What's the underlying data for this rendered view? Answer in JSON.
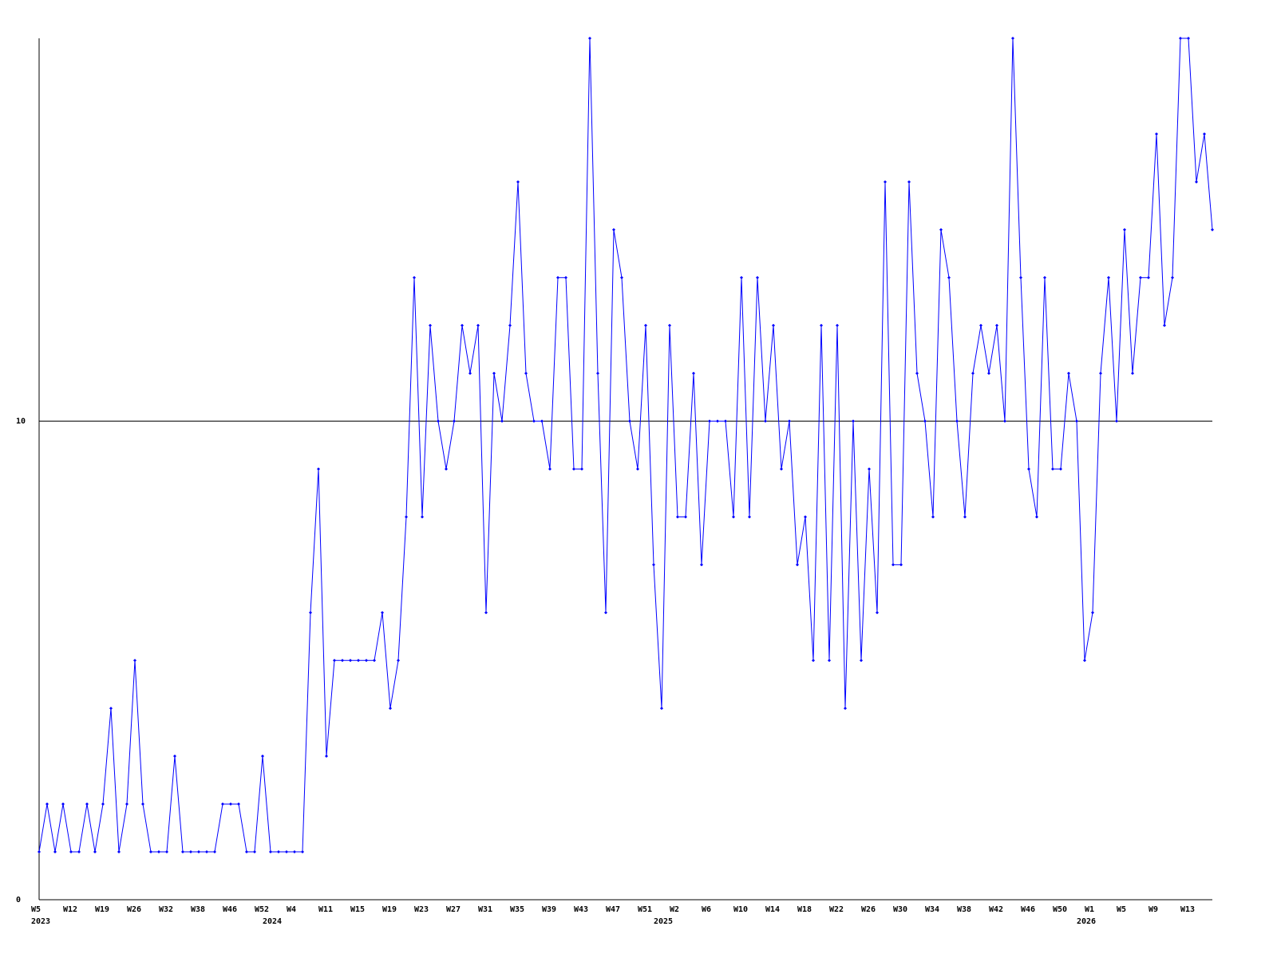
{
  "chart_data": {
    "type": "line",
    "color": "#0000ff",
    "grid": true,
    "ylim": [
      0,
      18
    ],
    "yticks": [
      0,
      10
    ],
    "categories": [
      "W5",
      null,
      null,
      null,
      "W12",
      null,
      null,
      null,
      "W19",
      null,
      null,
      null,
      "W26",
      null,
      null,
      null,
      "W32",
      null,
      null,
      null,
      "W38",
      null,
      null,
      null,
      "W46",
      null,
      null,
      null,
      "W52",
      null,
      null,
      null,
      "W4",
      null,
      null,
      null,
      "W11",
      null,
      null,
      null,
      "W15",
      null,
      null,
      null,
      "W19",
      null,
      null,
      null,
      "W23",
      null,
      null,
      null,
      "W27",
      null,
      null,
      null,
      "W31",
      null,
      null,
      null,
      "W35",
      null,
      null,
      null,
      "W39",
      null,
      null,
      null,
      "W43",
      null,
      null,
      null,
      "W47",
      null,
      null,
      null,
      "W51",
      null,
      null,
      null,
      "W2",
      null,
      null,
      null,
      "W6",
      null,
      null,
      null,
      "W10",
      null,
      null,
      null,
      "W14",
      null,
      null,
      null,
      "W18",
      null,
      null,
      null,
      "W22",
      null,
      null,
      null,
      "W26",
      null,
      null,
      null,
      "W30",
      null,
      null,
      null,
      "W34",
      null,
      null,
      null,
      "W38",
      null,
      null,
      null,
      "W42",
      null,
      null,
      null,
      "W46",
      null,
      null,
      null,
      "W50",
      null,
      null,
      null,
      "W1",
      null,
      null,
      null,
      "W5",
      null,
      null,
      null,
      "W9",
      null,
      null,
      null,
      "W13",
      null,
      null,
      null
    ],
    "year_labels": [
      "2023",
      null,
      null,
      null,
      null,
      null,
      null,
      null,
      null,
      null,
      null,
      null,
      null,
      null,
      null,
      null,
      null,
      null,
      null,
      null,
      null,
      null,
      null,
      null,
      null,
      null,
      null,
      null,
      null,
      "2024",
      null,
      null,
      null,
      null,
      null,
      null,
      null,
      null,
      null,
      null,
      null,
      null,
      null,
      null,
      null,
      null,
      null,
      null,
      null,
      null,
      null,
      null,
      null,
      null,
      null,
      null,
      null,
      null,
      null,
      null,
      null,
      null,
      null,
      null,
      null,
      null,
      null,
      null,
      null,
      null,
      null,
      null,
      null,
      null,
      null,
      null,
      null,
      null,
      "2025",
      null,
      null,
      null,
      null,
      null,
      null,
      null,
      null,
      null,
      null,
      null,
      null,
      null,
      null,
      null,
      null,
      null,
      null,
      null,
      null,
      null,
      null,
      null,
      null,
      null,
      null,
      null,
      null,
      null,
      null,
      null,
      null,
      null,
      null,
      null,
      null,
      null,
      null,
      null,
      null,
      null,
      null,
      null,
      null,
      null,
      null,
      null,
      null,
      null,
      null,
      null,
      null,
      "2026",
      null,
      null,
      null,
      null,
      null,
      null,
      null,
      null,
      null,
      null,
      null,
      null,
      null,
      null,
      null,
      null
    ],
    "values": [
      1,
      2,
      1,
      2,
      1,
      1,
      2,
      1,
      2,
      4,
      1,
      2,
      5,
      2,
      1,
      1,
      1,
      3,
      1,
      1,
      1,
      1,
      1,
      2,
      2,
      2,
      1,
      1,
      3,
      1,
      1,
      1,
      1,
      1,
      6,
      9,
      3,
      5,
      5,
      5,
      5,
      5,
      5,
      6,
      4,
      5,
      8,
      13,
      8,
      12,
      10,
      9,
      10,
      12,
      11,
      12,
      6,
      11,
      10,
      12,
      15,
      11,
      10,
      10,
      9,
      13,
      13,
      9,
      9,
      18,
      11,
      6,
      14,
      13,
      10,
      9,
      12,
      7,
      4,
      12,
      8,
      8,
      11,
      7,
      10,
      10,
      10,
      8,
      13,
      8,
      13,
      10,
      12,
      9,
      10,
      7,
      8,
      5,
      12,
      5,
      12,
      4,
      10,
      5,
      9,
      6,
      15,
      7,
      7,
      15,
      11,
      10,
      8,
      14,
      13,
      10,
      8,
      11,
      12,
      11,
      12,
      10,
      18,
      13,
      9,
      8,
      13,
      9,
      9,
      11,
      10,
      5,
      6,
      11,
      13,
      10,
      14,
      11,
      13,
      13,
      16,
      12,
      13,
      18,
      18,
      15,
      16,
      14
    ]
  }
}
